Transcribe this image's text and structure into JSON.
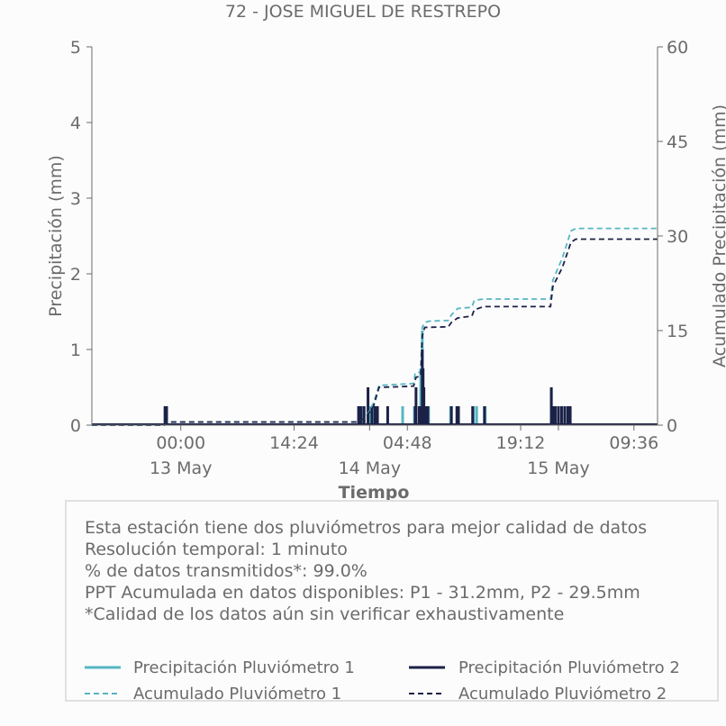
{
  "title": "72 - JOSE MIGUEL DE RESTREPO",
  "colors": {
    "p1": "#56b6c2",
    "p2": "#1c2147",
    "axis": "#6b6b6b",
    "box": "#e0e0e0"
  },
  "chart_data": {
    "type": "bar+line",
    "xlabel": "Tiempo",
    "ylabel_left": "Precipitación (mm)",
    "ylabel_right": "Acumulado Precipitación (mm)",
    "ylim_left": [
      0,
      5
    ],
    "ylim_right": [
      0,
      60
    ],
    "yticks_left": [
      "0",
      "1",
      "2",
      "3",
      "4",
      "5"
    ],
    "yticks_right": [
      "0",
      "15",
      "30",
      "45",
      "60"
    ],
    "x_range_hours": [
      -11.3,
      60.6
    ],
    "xticks": [
      {
        "t": 0,
        "time": "00:00",
        "date": "13 May"
      },
      {
        "t": 14.4,
        "time": "14:24",
        "date": ""
      },
      {
        "t": 24,
        "time": "",
        "date": "14 May"
      },
      {
        "t": 28.8,
        "time": "04:48",
        "date": ""
      },
      {
        "t": 43.2,
        "time": "19:12",
        "date": ""
      },
      {
        "t": 48,
        "time": "",
        "date": "15 May"
      },
      {
        "t": 57.6,
        "time": "09:36",
        "date": ""
      }
    ],
    "series": [
      {
        "name": "Precipitación Pluviómetro 1",
        "kind": "bar",
        "points": [
          [
            -2.0,
            0.25
          ],
          [
            -1.8,
            0.25
          ],
          [
            22.6,
            0.25
          ],
          [
            23.2,
            0.25
          ],
          [
            24.1,
            0.25
          ],
          [
            24.6,
            0.25
          ],
          [
            28.2,
            0.25
          ],
          [
            29.7,
            0.25
          ],
          [
            30.5,
            0.75
          ],
          [
            30.7,
            1.25
          ],
          [
            30.9,
            0.5
          ],
          [
            31.2,
            0.25
          ],
          [
            31.5,
            0.25
          ],
          [
            34.3,
            0.25
          ],
          [
            35.1,
            0.25
          ],
          [
            35.3,
            0.25
          ],
          [
            37.2,
            0.25
          ],
          [
            37.6,
            0.25
          ],
          [
            38.7,
            0.25
          ],
          [
            47.1,
            0.5
          ],
          [
            47.3,
            0.25
          ],
          [
            47.6,
            0.25
          ],
          [
            48.0,
            0.25
          ],
          [
            48.4,
            0.25
          ],
          [
            48.8,
            0.25
          ],
          [
            49.2,
            0.25
          ],
          [
            49.5,
            0.25
          ]
        ]
      },
      {
        "name": "Precipitación Pluviómetro 2",
        "kind": "bar",
        "points": [
          [
            -2.0,
            0.25
          ],
          [
            -1.8,
            0.25
          ],
          [
            22.6,
            0.25
          ],
          [
            22.9,
            0.25
          ],
          [
            23.3,
            0.25
          ],
          [
            23.8,
            0.5
          ],
          [
            24.3,
            0.25
          ],
          [
            24.7,
            0.25
          ],
          [
            25.0,
            0.25
          ],
          [
            26.3,
            0.25
          ],
          [
            29.8,
            0.25
          ],
          [
            29.9,
            0.5
          ],
          [
            30.3,
            0.25
          ],
          [
            30.6,
            0.25
          ],
          [
            30.7,
            1.0
          ],
          [
            30.8,
            0.75
          ],
          [
            30.9,
            0.5
          ],
          [
            31.1,
            0.25
          ],
          [
            31.4,
            0.25
          ],
          [
            34.4,
            0.25
          ],
          [
            35.1,
            0.25
          ],
          [
            35.3,
            0.25
          ],
          [
            37.1,
            0.25
          ],
          [
            38.6,
            0.25
          ],
          [
            47.1,
            0.5
          ],
          [
            47.3,
            0.25
          ],
          [
            47.6,
            0.25
          ],
          [
            48.0,
            0.25
          ],
          [
            48.4,
            0.25
          ],
          [
            48.8,
            0.25
          ],
          [
            49.2,
            0.25
          ],
          [
            49.5,
            0.25
          ]
        ]
      },
      {
        "name": "Acumulado Pluviómetro 1",
        "kind": "line",
        "axis": "right",
        "points": [
          [
            -11.3,
            0
          ],
          [
            -2.1,
            0
          ],
          [
            -1.9,
            0.5
          ],
          [
            22.5,
            0.5
          ],
          [
            23.5,
            1.2
          ],
          [
            24.5,
            3.5
          ],
          [
            25.2,
            6.3
          ],
          [
            28.0,
            6.5
          ],
          [
            29.6,
            6.6
          ],
          [
            29.8,
            8.3
          ],
          [
            30.5,
            8.4
          ],
          [
            30.7,
            15.5
          ],
          [
            31.0,
            16.3
          ],
          [
            31.6,
            16.5
          ],
          [
            34.0,
            16.6
          ],
          [
            34.4,
            17.5
          ],
          [
            35.2,
            18.5
          ],
          [
            37.0,
            18.7
          ],
          [
            37.3,
            19.8
          ],
          [
            38.5,
            20.0
          ],
          [
            47.0,
            20.0
          ],
          [
            47.3,
            23.0
          ],
          [
            48.5,
            26.5
          ],
          [
            49.6,
            30.8
          ],
          [
            50.2,
            31.2
          ],
          [
            60.6,
            31.2
          ]
        ]
      },
      {
        "name": "Acumulado Pluviómetro 2",
        "kind": "line",
        "axis": "right",
        "points": [
          [
            -11.3,
            0
          ],
          [
            -2.1,
            0
          ],
          [
            -1.9,
            0.5
          ],
          [
            22.5,
            0.5
          ],
          [
            23.5,
            1.2
          ],
          [
            24.5,
            3.0
          ],
          [
            25.2,
            6.0
          ],
          [
            28.0,
            6.1
          ],
          [
            29.6,
            6.2
          ],
          [
            29.9,
            7.6
          ],
          [
            30.5,
            7.8
          ],
          [
            30.7,
            14.2
          ],
          [
            31.0,
            15.5
          ],
          [
            34.0,
            15.6
          ],
          [
            34.4,
            16.3
          ],
          [
            35.2,
            17.0
          ],
          [
            37.0,
            17.3
          ],
          [
            37.3,
            18.3
          ],
          [
            38.5,
            18.8
          ],
          [
            47.0,
            18.8
          ],
          [
            47.3,
            22.0
          ],
          [
            48.5,
            25.0
          ],
          [
            49.6,
            29.0
          ],
          [
            50.2,
            29.5
          ],
          [
            60.6,
            29.5
          ]
        ]
      }
    ]
  },
  "info": {
    "line1": "Esta estación tiene dos pluviómetros para mejor calidad de datos",
    "line2": "Resolución temporal: 1 minuto",
    "line3": "% de datos transmitidos*: 99.0%",
    "line4": "PPT Acumulada en datos disponibles: P1 - 31.2mm, P2 - 29.5mm",
    "line5": "*Calidad de los datos aún sin verificar exhaustivamente"
  },
  "legend": {
    "p1_precip": "Precipitación Pluviómetro 1",
    "p2_precip": "Precipitación Pluviómetro 2",
    "p1_acum": "Acumulado Pluviómetro 1",
    "p2_acum": "Acumulado Pluviómetro 2"
  }
}
